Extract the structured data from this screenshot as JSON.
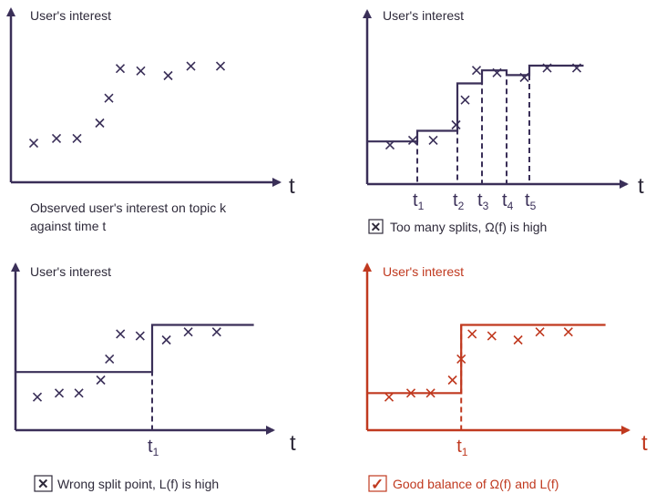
{
  "colors": {
    "dark": "#3a2f58",
    "red": "#c0391f",
    "text_dark": "#2e2a3a"
  },
  "axis": {
    "y_label": "User's interest",
    "x_label": "t"
  },
  "chart_data": {
    "type": "scatter",
    "points_t": [
      1,
      2,
      2.9,
      3.9,
      4.3,
      4.8,
      5.7,
      6.9,
      7.9,
      9.2
    ],
    "points_interest": [
      3.3,
      3.7,
      3.7,
      5.0,
      7.1,
      9.6,
      9.4,
      9.0,
      9.8,
      9.8
    ]
  },
  "panels": [
    {
      "id": "observed",
      "caption_line1": "Observed user's interest on topic k",
      "caption_line2": "against time t",
      "steps": null
    },
    {
      "id": "too-many-splits",
      "caption_mark": "✕",
      "caption": "Too many splits, Ω(f) is high",
      "split_labels": [
        "t",
        "t",
        "t",
        "t",
        "t"
      ],
      "split_subs": [
        "1",
        "2",
        "3",
        "4",
        "5"
      ],
      "steps": {
        "splits": [
          2.2,
          3.96,
          5.04,
          6.12,
          7.12
        ],
        "levels": [
          3.6,
          4.5,
          8.5,
          9.6,
          9.2,
          10.0
        ],
        "end": 9.5
      }
    },
    {
      "id": "wrong-split",
      "caption_mark": "✕",
      "caption": "Wrong split point, L(f) is high",
      "split_labels": [
        "t"
      ],
      "split_subs": [
        "1"
      ],
      "steps": {
        "splits": [
          6.25
        ],
        "levels": [
          5.8,
          10.5
        ],
        "end": 10.9
      }
    },
    {
      "id": "good-balance",
      "caption_mark": "✓",
      "caption": "Good balance of Ω(f) and L(f)",
      "split_labels": [
        "t"
      ],
      "split_subs": [
        "1"
      ],
      "steps": {
        "splits": [
          4.3
        ],
        "levels": [
          3.7,
          10.5
        ],
        "end": 10.9
      }
    }
  ]
}
